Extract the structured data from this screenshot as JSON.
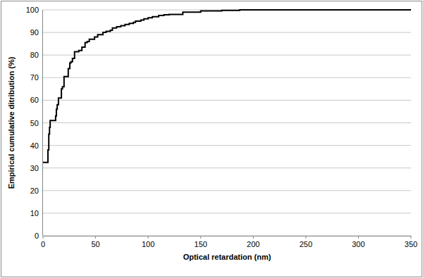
{
  "chart_data": {
    "type": "line",
    "xlabel": "Optical retardation (nm)",
    "ylabel": "Empirical cumulative ditribution (%)",
    "x": [
      0,
      4.7,
      5.5,
      6.2,
      6.8,
      8,
      12,
      12.7,
      13.5,
      14.7,
      16.8,
      17.5,
      18.5,
      20,
      23.5,
      24,
      25.5,
      26.5,
      28,
      30,
      33,
      34,
      37,
      40,
      42,
      44,
      49,
      52,
      57,
      60,
      64,
      66,
      70,
      74,
      78,
      82,
      86,
      88,
      93,
      96,
      100,
      104,
      110,
      115,
      120,
      133,
      150,
      170,
      187,
      350
    ],
    "values": [
      32.5,
      38,
      45,
      48,
      51,
      51,
      53,
      56,
      58,
      61,
      61,
      65,
      66,
      70.5,
      70.5,
      74,
      76.5,
      77,
      78.5,
      81.5,
      81.5,
      82,
      83.5,
      85.5,
      86,
      87,
      88,
      89,
      90,
      90.5,
      91,
      92,
      92.5,
      93,
      93.5,
      94,
      94.5,
      95,
      95.5,
      96,
      96.5,
      97,
      97.5,
      97.8,
      98,
      99,
      99.5,
      99.8,
      100,
      100
    ],
    "color": "#000000",
    "line_style": "step",
    "xlim": [
      0,
      350
    ],
    "xticks": [
      0,
      50,
      100,
      150,
      200,
      250,
      300,
      350
    ],
    "ylim": [
      0,
      100
    ],
    "yticks": [
      0,
      10,
      20,
      30,
      40,
      50,
      60,
      70,
      80,
      90,
      100
    ],
    "grid": true
  }
}
